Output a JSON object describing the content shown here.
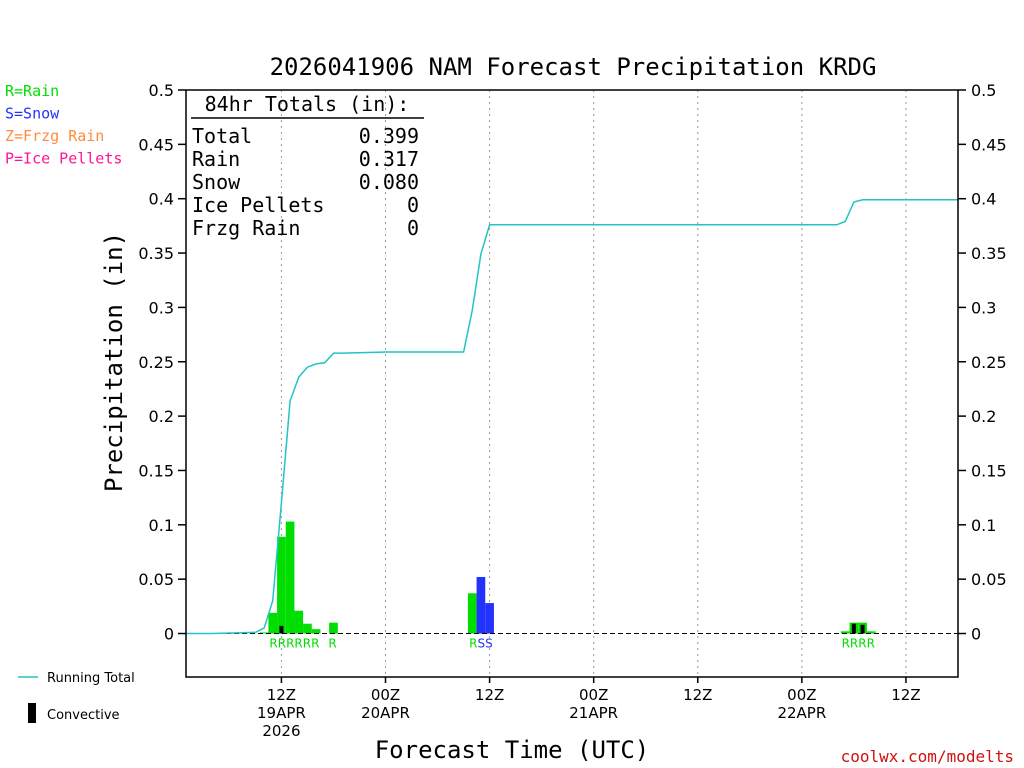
{
  "colors": {
    "rain": "#00dd00",
    "snow": "#2233ff",
    "frzg_rain": "#ff8c3a",
    "ice_pellets": "#ff1493",
    "running_total": "#22c4c4",
    "convective": "#000000",
    "credit": "#d01010"
  },
  "legend_types": [
    {
      "label": "R=Rain",
      "color_key": "rain"
    },
    {
      "label": "S=Snow",
      "color_key": "snow"
    },
    {
      "label": "Z=Frzg Rain",
      "color_key": "frzg_rain"
    },
    {
      "label": "P=Ice Pellets",
      "color_key": "ice_pellets"
    }
  ],
  "bottom_legend": {
    "running_total": "Running Total",
    "convective": "Convective"
  },
  "totals": {
    "heading": "84hr Totals (in):",
    "rows": [
      {
        "label": "Total",
        "value": "0.399"
      },
      {
        "label": "Rain",
        "value": "0.317"
      },
      {
        "label": "Snow",
        "value": "0.080"
      },
      {
        "label": "Ice Pellets",
        "value": "0"
      },
      {
        "label": "Frzg Rain",
        "value": "0"
      }
    ]
  },
  "credit": "coolwx.com/modelts",
  "chart_data": {
    "type": "bar",
    "title": "2026041906 NAM Forecast Precipitation KRDG",
    "ylabel": "Precipitation (in)",
    "xlabel": "Forecast Time (UTC)",
    "units_x": "hours since 2026-04-19 06Z",
    "xlim": [
      -5,
      84
    ],
    "ylim": [
      -0.04,
      0.5
    ],
    "yticks": [
      0,
      0.05,
      0.1,
      0.15,
      0.2,
      0.25,
      0.3,
      0.35,
      0.4,
      0.45,
      0.5
    ],
    "ytick_labels": [
      "0",
      "0.05",
      "0.1",
      "0.15",
      "0.2",
      "0.25",
      "0.3",
      "0.35",
      "0.4",
      "0.45",
      "0.5"
    ],
    "xticks": [
      {
        "x": 6,
        "lines": [
          "12Z",
          "19APR",
          "2026"
        ]
      },
      {
        "x": 18,
        "lines": [
          "00Z",
          "20APR"
        ]
      },
      {
        "x": 30,
        "lines": [
          "12Z",
          ""
        ]
      },
      {
        "x": 42,
        "lines": [
          "00Z",
          "21APR"
        ]
      },
      {
        "x": 54,
        "lines": [
          "12Z",
          ""
        ]
      },
      {
        "x": 66,
        "lines": [
          "00Z",
          "22APR"
        ]
      },
      {
        "x": 78,
        "lines": [
          "12Z",
          ""
        ]
      }
    ],
    "bars": [
      {
        "x": 4,
        "value": 0.001,
        "type": "rain",
        "convective": 0
      },
      {
        "x": 5,
        "value": 0.019,
        "type": "rain",
        "convective": 0
      },
      {
        "x": 6,
        "value": 0.089,
        "type": "rain",
        "convective": 0.007
      },
      {
        "x": 7,
        "value": 0.103,
        "type": "rain",
        "convective": 0
      },
      {
        "x": 8,
        "value": 0.021,
        "type": "rain",
        "convective": 0
      },
      {
        "x": 9,
        "value": 0.009,
        "type": "rain",
        "convective": 0
      },
      {
        "x": 10,
        "value": 0.004,
        "type": "rain",
        "convective": 0
      },
      {
        "x": 12,
        "value": 0.01,
        "type": "rain",
        "convective": 0
      },
      {
        "x": 28,
        "value": 0.037,
        "type": "rain",
        "convective": 0
      },
      {
        "x": 29,
        "value": 0.052,
        "type": "snow",
        "convective": 0
      },
      {
        "x": 30,
        "value": 0.028,
        "type": "snow",
        "convective": 0
      },
      {
        "x": 71,
        "value": 0.002,
        "type": "rain",
        "convective": 0
      },
      {
        "x": 72,
        "value": 0.01,
        "type": "rain",
        "convective": 0.009
      },
      {
        "x": 73,
        "value": 0.01,
        "type": "rain",
        "convective": 0.008
      },
      {
        "x": 74,
        "value": 0.002,
        "type": "rain",
        "convective": 0
      }
    ],
    "type_labels": [
      {
        "x": 7.5,
        "text": "RRRRRR",
        "type": "rain"
      },
      {
        "x": 11.9,
        "text": "R",
        "type": "rain"
      },
      {
        "x": 29,
        "text": "RSS",
        "type": "mixed"
      },
      {
        "x": 72.5,
        "text": "RRRR",
        "type": "rain"
      }
    ],
    "running_total": {
      "x": [
        -5,
        -2,
        3,
        4,
        5,
        6,
        7,
        8,
        9,
        10,
        11,
        12,
        13,
        18,
        27,
        28,
        29,
        30,
        70,
        71,
        72,
        73,
        84
      ],
      "y": [
        0,
        0,
        0.001,
        0.005,
        0.03,
        0.12,
        0.214,
        0.236,
        0.245,
        0.248,
        0.249,
        0.258,
        0.258,
        0.259,
        0.259,
        0.297,
        0.349,
        0.376,
        0.376,
        0.379,
        0.397,
        0.399,
        0.399
      ]
    }
  }
}
